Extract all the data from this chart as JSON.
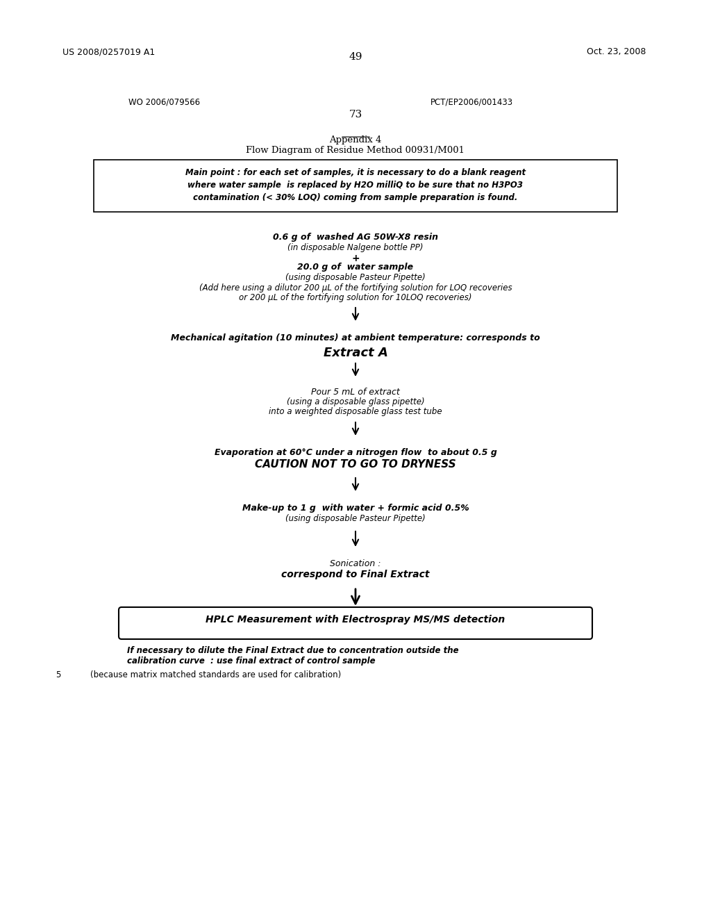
{
  "bg_color": "#ffffff",
  "header_left": "US 2008/0257019 A1",
  "header_right": "Oct. 23, 2008",
  "page_number_top": "49",
  "wo_number": "WO 2006/079566",
  "pct_number": "PCT/EP2006/001433",
  "page_number_inner": "73",
  "appendix_title": "Appendix 4",
  "appendix_subtitle": "Flow Diagram of Residue Method 00931/M001",
  "box_text": "Main point : for each set of samples, it is necessary to do a blank reagent\nwhere water sample  is replaced by H2O milliQ to be sure that no H3PO3\ncontamination (< 30% LOQ) coming from sample preparation is found.",
  "step1_line1": "0.6 g of  washed AG 50W-X8 resin",
  "step1_line2": "(in disposable Nalgene bottle PP)",
  "step1_plus": "+",
  "step1_line3": "20.0 g of  water sample",
  "step1_line4": "(using disposable Pasteur Pipette)",
  "step1_line5": "(Add here using a dilutor 200 μL of the fortifying solution for LOQ recoveries",
  "step1_line6": "or 200 μL of the fortifying solution for 10LOQ recoveries)",
  "step2_line1": "Mechanical agitation (10 minutes) at ambient temperature: corresponds to",
  "step2_line2": "Extract A",
  "step3_line1": "Pour 5 mL of extract",
  "step3_line2": "(using a disposable glass pipette)",
  "step3_line3": "into a weighted disposable glass test tube",
  "step4_line1": "Evaporation at 60°C under a nitrogen flow  to about 0.5 g",
  "step4_line2": "CAUTION NOT TO GO TO DRYNESS",
  "step5_line1": "Make-up to 1 g  with water + formic acid 0.5%",
  "step5_line2": "(using disposable Pasteur Pipette)",
  "step6_line1": "Sonication :",
  "step6_line2": "correspond to Final Extract",
  "step7_box": "HPLC Measurement with Electrospray MS/MS detection",
  "footer_line1": "If necessary to dilute the Final Extract due to concentration outside the",
  "footer_line2": "calibration curve  : use final extract of control sample",
  "footer_line3_num": "5",
  "footer_line3": "(because matrix matched standards are used for calibration)"
}
